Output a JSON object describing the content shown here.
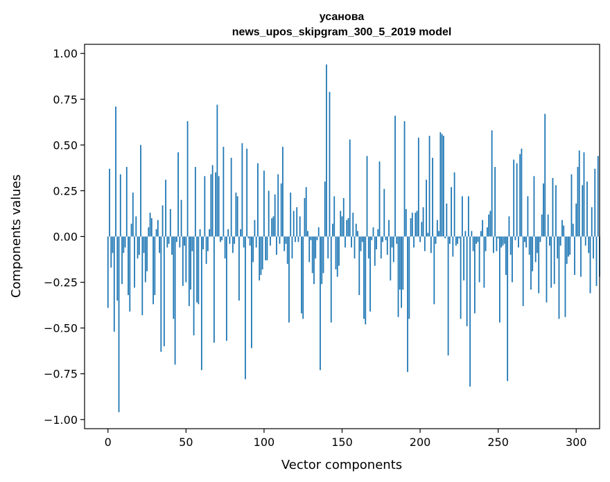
{
  "chart_data": {
    "type": "bar",
    "title_lines": [
      "усанова",
      "news_upos_skipgram_300_5_2019 model"
    ],
    "xlabel": "Vector components",
    "ylabel": "Components values",
    "xlim": [
      -15,
      315
    ],
    "ylim": [
      -1.05,
      1.05
    ],
    "x_ticks": [
      0,
      50,
      100,
      150,
      200,
      250,
      300
    ],
    "y_ticks": [
      -1.0,
      -0.75,
      -0.5,
      -0.25,
      0.0,
      0.25,
      0.5,
      0.75,
      1.0
    ],
    "y_tick_labels": [
      "−1.00",
      "−0.75",
      "−0.50",
      "−0.25",
      "0.00",
      "0.25",
      "0.50",
      "0.75",
      "1.00"
    ],
    "grid": false,
    "series": [
      {
        "name": "усанова",
        "color": "#1f77b4",
        "x_start": 0,
        "values": [
          -0.39,
          0.37,
          -0.17,
          -0.09,
          -0.52,
          0.71,
          -0.35,
          -0.96,
          0.34,
          -0.26,
          -0.09,
          -0.06,
          0.38,
          -0.32,
          -0.41,
          0.07,
          0.24,
          -0.28,
          0.11,
          -0.12,
          -0.1,
          0.5,
          -0.43,
          -0.09,
          -0.25,
          -0.19,
          0.05,
          0.13,
          0.1,
          -0.37,
          -0.32,
          0.04,
          0.09,
          -0.09,
          -0.63,
          0.17,
          -0.6,
          0.31,
          -0.06,
          -0.04,
          0.15,
          -0.1,
          -0.45,
          -0.7,
          -0.03,
          0.46,
          -0.06,
          0.2,
          -0.27,
          -0.05,
          -0.25,
          0.63,
          -0.38,
          -0.29,
          -0.08,
          -0.54,
          0.38,
          -0.36,
          -0.37,
          0.04,
          -0.73,
          -0.07,
          0.33,
          -0.15,
          -0.08,
          0.04,
          0.34,
          0.39,
          -0.58,
          0.35,
          0.72,
          0.33,
          -0.03,
          -0.02,
          0.49,
          -0.12,
          -0.57,
          0.04,
          -0.04,
          0.43,
          -0.09,
          -0.04,
          0.24,
          0.22,
          -0.35,
          0.04,
          0.51,
          -0.06,
          -0.78,
          0.48,
          -0.01,
          -0.05,
          -0.61,
          -0.14,
          0.09,
          -0.06,
          0.4,
          -0.24,
          -0.21,
          -0.18,
          0.36,
          -0.13,
          -0.13,
          0.25,
          -0.05,
          0.1,
          0.11,
          0.23,
          -0.1,
          0.34,
          -0.04,
          0.29,
          0.49,
          -0.08,
          -0.04,
          -0.15,
          -0.47,
          0.24,
          -0.12,
          0.14,
          -0.03,
          0.16,
          -0.03,
          0.11,
          -0.42,
          -0.45,
          0.21,
          0.27,
          0.03,
          -0.14,
          -0.02,
          -0.2,
          -0.26,
          -0.12,
          -0.02,
          0.05,
          -0.73,
          -0.26,
          -0.2,
          0.3,
          0.94,
          -0.12,
          0.79,
          -0.47,
          0.07,
          0.22,
          -0.18,
          -0.22,
          -0.16,
          0.14,
          0.11,
          0.21,
          -0.06,
          0.09,
          0.1,
          0.53,
          -0.06,
          0.13,
          -0.12,
          0.07,
          0.03,
          -0.32,
          -0.08,
          -0.03,
          -0.45,
          -0.48,
          0.44,
          -0.12,
          -0.41,
          -0.02,
          0.05,
          -0.16,
          -0.07,
          0.04,
          0.41,
          -0.12,
          -0.03,
          0.26,
          -0.02,
          -0.1,
          0.09,
          -0.24,
          -0.06,
          -0.14,
          0.66,
          -0.04,
          -0.44,
          -0.29,
          -0.39,
          -0.29,
          0.63,
          0.15,
          -0.74,
          -0.45,
          0.1,
          0.13,
          -0.06,
          0.13,
          0.14,
          0.54,
          -0.03,
          0.08,
          0.16,
          -0.08,
          0.31,
          0.02,
          0.55,
          -0.09,
          0.43,
          -0.37,
          -0.04,
          0.09,
          0.03,
          0.57,
          0.56,
          0.55,
          -0.01,
          0.18,
          -0.65,
          -0.04,
          0.27,
          -0.11,
          0.35,
          -0.05,
          -0.04,
          -0.01,
          -0.45,
          0.22,
          -0.24,
          0.03,
          -0.49,
          0.22,
          -0.82,
          0.03,
          -0.08,
          -0.42,
          -0.04,
          -0.03,
          -0.25,
          0.03,
          0.09,
          -0.28,
          -0.08,
          0.05,
          0.12,
          0.14,
          0.58,
          -0.09,
          0.38,
          -0.08,
          -0.01,
          -0.47,
          -0.06,
          -0.05,
          -0.04,
          -0.21,
          -0.79,
          0.11,
          -0.1,
          -0.25,
          0.42,
          -0.02,
          0.4,
          -0.06,
          0.45,
          0.48,
          -0.38,
          -0.03,
          -0.06,
          0.22,
          -0.1,
          -0.29,
          -0.19,
          0.33,
          -0.14,
          -0.09,
          -0.31,
          -0.03,
          0.12,
          0.29,
          0.67,
          -0.36,
          0.12,
          -0.05,
          -0.28,
          0.32,
          -0.26,
          0.28,
          -0.12,
          -0.45,
          -0.05,
          0.09,
          0.06,
          -0.44,
          -0.15,
          -0.11,
          -0.1,
          0.34,
          0.07,
          -0.21,
          0.18,
          0.38,
          0.47,
          -0.22,
          0.28,
          0.46,
          -0.05,
          0.3,
          -0.09,
          -0.31,
          0.16,
          -0.12,
          0.37,
          -0.27,
          0.44,
          -0.22
        ]
      }
    ]
  }
}
